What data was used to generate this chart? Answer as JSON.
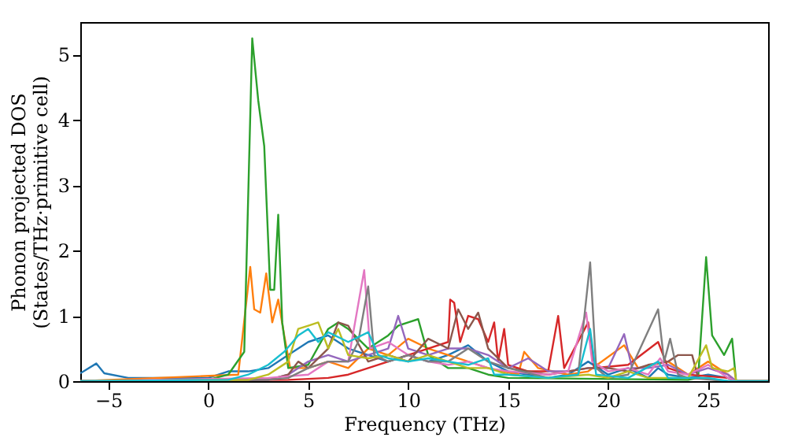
{
  "chart_data": {
    "type": "line",
    "xlabel": "Frequency (THz)",
    "ylabel": "Phonon projected DOS\n(States/THz·primitive cell)",
    "xlim": [
      -6.4,
      28
    ],
    "xticks": [
      -5,
      0,
      5,
      10,
      15,
      20,
      25
    ],
    "ylim": [
      0,
      5.5
    ],
    "yticks": [
      0,
      1,
      2,
      3,
      4,
      5
    ],
    "grid": false,
    "line_style": "solid",
    "marker": "none",
    "series": [
      {
        "color": "#1f77b4",
        "x": [
          -6.4,
          -5.6,
          -5.2,
          -4,
          0,
          1,
          2,
          3,
          4,
          5,
          6,
          7,
          8,
          9,
          10,
          11,
          12,
          13,
          14,
          15,
          16,
          17,
          18,
          19,
          20,
          21,
          22,
          22.5,
          23,
          24,
          25,
          26,
          26.4,
          28
        ],
        "values": [
          0.12,
          0.27,
          0.12,
          0.05,
          0.05,
          0.15,
          0.15,
          0.2,
          0.4,
          0.6,
          0.7,
          0.5,
          0.4,
          0.3,
          0.4,
          0.3,
          0.4,
          0.55,
          0.3,
          0.15,
          0.1,
          0.05,
          0.1,
          0.3,
          0.1,
          0.2,
          0.05,
          0.2,
          0.1,
          0.05,
          0.1,
          0.05,
          0,
          0
        ]
      },
      {
        "color": "#ff7f0e",
        "x": [
          -6.4,
          1.5,
          2.1,
          2.3,
          2.6,
          2.9,
          3.2,
          3.5,
          3.8,
          4.1,
          5,
          6,
          7,
          8,
          9,
          10,
          11,
          12,
          13,
          14,
          15.5,
          15.8,
          16.5,
          18,
          19,
          20.8,
          21.5,
          23,
          24,
          25,
          26,
          26.4,
          28
        ],
        "values": [
          0,
          0.1,
          1.75,
          1.1,
          1.05,
          1.65,
          0.9,
          1.25,
          0.7,
          0.2,
          0.2,
          0.3,
          0.2,
          0.5,
          0.4,
          0.65,
          0.5,
          0.4,
          0.3,
          0.2,
          0.1,
          0.45,
          0.2,
          0.1,
          0.15,
          0.55,
          0.2,
          0.3,
          0.1,
          0.3,
          0.1,
          0,
          0
        ]
      },
      {
        "color": "#2ca02c",
        "x": [
          -6.4,
          0,
          1,
          1.8,
          2.2,
          2.5,
          2.8,
          3.1,
          3.3,
          3.5,
          3.7,
          4,
          5,
          6,
          6.5,
          7,
          8,
          9,
          9.5,
          10,
          10.5,
          11,
          12,
          13,
          14,
          15,
          24,
          24.5,
          24.9,
          25.2,
          25.8,
          26.2,
          26.4,
          28
        ],
        "values": [
          0,
          0.02,
          0.1,
          0.45,
          5.25,
          4.3,
          3.6,
          1.4,
          1.4,
          2.55,
          0.9,
          0.2,
          0.25,
          0.8,
          0.9,
          0.8,
          0.5,
          0.7,
          0.85,
          0.9,
          0.95,
          0.4,
          0.2,
          0.2,
          0.1,
          0.05,
          0.02,
          0.05,
          1.9,
          0.7,
          0.4,
          0.65,
          0,
          0
        ]
      },
      {
        "color": "#d62728",
        "x": [
          -6.4,
          4,
          6,
          7,
          8,
          9,
          10,
          11,
          12,
          12.1,
          12.3,
          12.6,
          13,
          13.5,
          14,
          14.3,
          14.5,
          14.8,
          15,
          16,
          17,
          17.5,
          17.8,
          19,
          19.3,
          21,
          22.5,
          23,
          24,
          26,
          26.4,
          28
        ],
        "values": [
          0,
          0.02,
          0.05,
          0.1,
          0.2,
          0.3,
          0.4,
          0.5,
          0.6,
          1.25,
          1.2,
          0.6,
          1.0,
          0.95,
          0.6,
          0.9,
          0.3,
          0.8,
          0.25,
          0.15,
          0.15,
          1.0,
          0.2,
          0.9,
          0.2,
          0.25,
          0.6,
          0.2,
          0.1,
          0.05,
          0,
          0
        ]
      },
      {
        "color": "#9467bd",
        "x": [
          -6.4,
          3,
          4,
          5,
          6,
          7,
          8,
          9,
          9.5,
          10,
          11,
          12,
          13,
          14,
          15,
          16,
          17,
          18,
          19,
          20,
          20.8,
          21.2,
          22,
          23,
          24,
          25,
          26,
          26.4,
          28
        ],
        "values": [
          0,
          0.02,
          0.1,
          0.3,
          0.4,
          0.3,
          0.4,
          0.5,
          1.0,
          0.5,
          0.4,
          0.5,
          0.5,
          0.4,
          0.2,
          0.35,
          0.15,
          0.15,
          0.2,
          0.2,
          0.72,
          0.2,
          0.2,
          0.25,
          0.1,
          0.2,
          0.1,
          0,
          0
        ]
      },
      {
        "color": "#8c564b",
        "x": [
          -6.4,
          3,
          4,
          4.5,
          5,
          6,
          6.5,
          7,
          8,
          9,
          10,
          11,
          12,
          12.5,
          13,
          13.5,
          14,
          15,
          17,
          19,
          20,
          21,
          22,
          23,
          23.5,
          24.2,
          24.5,
          26,
          28
        ],
        "values": [
          0,
          0.02,
          0.1,
          0.3,
          0.2,
          0.5,
          0.9,
          0.85,
          0.3,
          0.4,
          0.3,
          0.65,
          0.5,
          1.1,
          0.8,
          1.05,
          0.5,
          0.2,
          0.1,
          0.2,
          0.2,
          0.15,
          0.25,
          0.3,
          0.4,
          0.4,
          0.05,
          0,
          0
        ]
      },
      {
        "color": "#e377c2",
        "x": [
          -6.4,
          3,
          5,
          6,
          7,
          7.8,
          8.1,
          9,
          10,
          11,
          12,
          13,
          14,
          15,
          17,
          18,
          18.9,
          19.2,
          20,
          21,
          22,
          22.6,
          23,
          24,
          25,
          26,
          26.4,
          28
        ],
        "values": [
          0,
          0.05,
          0.1,
          0.3,
          0.3,
          1.7,
          0.5,
          0.6,
          0.4,
          0.3,
          0.25,
          0.3,
          0.2,
          0.15,
          0.1,
          0.15,
          1.05,
          0.3,
          0.15,
          0.2,
          0.1,
          0.35,
          0.15,
          0.1,
          0.25,
          0.05,
          0,
          0
        ]
      },
      {
        "color": "#7f7f7f",
        "x": [
          -6.4,
          3,
          4,
          5,
          6,
          7,
          7.5,
          8,
          8.3,
          9,
          10,
          11,
          12,
          13,
          14,
          15,
          17,
          18.5,
          19.1,
          19.4,
          20,
          21,
          22.5,
          22.8,
          23.1,
          23.5,
          24,
          26,
          28
        ],
        "values": [
          0,
          0.02,
          0.05,
          0.2,
          0.3,
          0.3,
          0.6,
          1.45,
          0.4,
          0.3,
          0.4,
          0.3,
          0.3,
          0.5,
          0.3,
          0.2,
          0.05,
          0.1,
          1.82,
          0.2,
          0.05,
          0.1,
          1.1,
          0.3,
          0.65,
          0.1,
          0.05,
          0,
          0
        ]
      },
      {
        "color": "#bcbd22",
        "x": [
          -6.4,
          2,
          3,
          4,
          4.5,
          5,
          5.5,
          6,
          6.5,
          7,
          8,
          9,
          10,
          11,
          12,
          13,
          14,
          15,
          17,
          19,
          20,
          21,
          22,
          24,
          24.9,
          25.2,
          26,
          26.3,
          26.4,
          28
        ],
        "values": [
          0,
          0.02,
          0.1,
          0.3,
          0.8,
          0.85,
          0.9,
          0.5,
          0.8,
          0.4,
          0.35,
          0.4,
          0.3,
          0.4,
          0.3,
          0.2,
          0.2,
          0.1,
          0.05,
          0.1,
          0.05,
          0.15,
          0.05,
          0.05,
          0.55,
          0.2,
          0.15,
          0.2,
          0,
          0
        ]
      },
      {
        "color": "#17becf",
        "x": [
          -6.4,
          1,
          2,
          3,
          3.8,
          4.5,
          5,
          5.5,
          6,
          7,
          8,
          8.5,
          9,
          10,
          11,
          12,
          13,
          14,
          14.3,
          15,
          17,
          18.5,
          19.1,
          19.4,
          21,
          22.5,
          23,
          25,
          26,
          28
        ],
        "values": [
          0,
          0.02,
          0.1,
          0.25,
          0.45,
          0.7,
          0.8,
          0.6,
          0.75,
          0.6,
          0.75,
          0.4,
          0.35,
          0.3,
          0.35,
          0.3,
          0.25,
          0.35,
          0.1,
          0.1,
          0.05,
          0.1,
          0.8,
          0.1,
          0.05,
          0.3,
          0.05,
          0.05,
          0,
          0
        ]
      }
    ]
  }
}
